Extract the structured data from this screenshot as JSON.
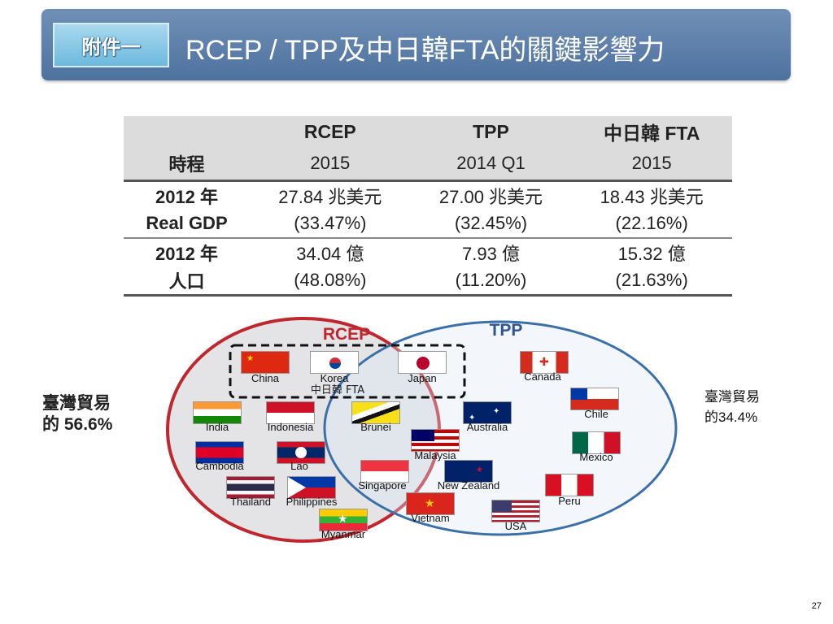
{
  "header": {
    "badge": "附件一",
    "title": "RCEP / TPP及中日韓FTA的關鍵影響力"
  },
  "table": {
    "columns": [
      "RCEP",
      "TPP",
      "中日韓 FTA"
    ],
    "rows": [
      {
        "label": "時程",
        "values": [
          "2015",
          "2014 Q1",
          "2015"
        ]
      },
      {
        "label": "2012 年",
        "values": [
          "27.84 兆美元",
          "27.00 兆美元",
          "18.43 兆美元"
        ]
      },
      {
        "label": "Real GDP",
        "values": [
          "(33.47%)",
          "(32.45%)",
          "(22.16%)"
        ]
      },
      {
        "label": "2012 年",
        "values": [
          "34.04 億",
          "7.93 億",
          "15.32 億"
        ]
      },
      {
        "label": "人口",
        "values": [
          "(48.08%)",
          "(11.20%)",
          "(21.63%)"
        ]
      }
    ]
  },
  "venn": {
    "rcep_label": "RCEP",
    "tpp_label": "TPP",
    "fta_label": "中日韓 FTA",
    "countries": {
      "china": "China",
      "korea": "Korea",
      "japan": "Japan",
      "india": "India",
      "indonesia": "Indonesia",
      "cambodia": "Cambodia",
      "lao": "Lao",
      "thailand": "Thailand",
      "philippines": "Philippines",
      "myanmar": "Myanmar",
      "brunei": "Brunei",
      "australia": "Australia",
      "malaysia": "Malaysia",
      "singapore": "Singapore",
      "new_zealand": "New Zealand",
      "vietnam": "Vietnam",
      "canada": "Canada",
      "chile": "Chile",
      "mexico": "Mexico",
      "peru": "Peru",
      "usa": "USA"
    }
  },
  "side_left": {
    "line1": "臺灣貿易",
    "line2": "的 56.6%"
  },
  "side_right": {
    "line1": "臺灣貿易",
    "line2": "的34.4%"
  },
  "page_number": "27",
  "colors": {
    "banner": "#5a7dab",
    "rcep": "#c0262d",
    "tpp": "#3b6fa8"
  }
}
